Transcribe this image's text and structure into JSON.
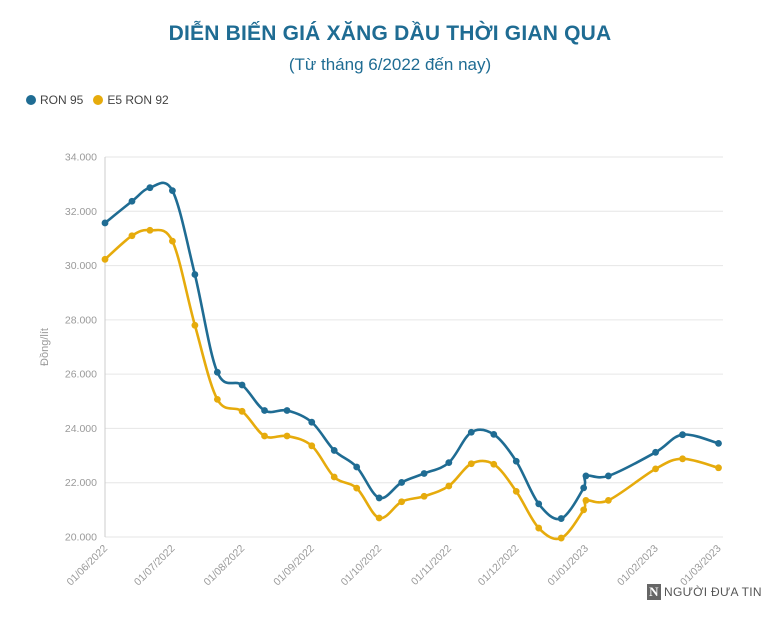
{
  "chart_data": {
    "type": "line",
    "title": "DIỄN BIẾN GIÁ XĂNG DẦU THỜI GIAN QUA",
    "subtitle": "(Từ tháng 6/2022 đến nay)",
    "ylabel": "Đồng/lít",
    "xlabel": "",
    "ylim": [
      20000,
      34000
    ],
    "y_ticks": [
      20000,
      22000,
      24000,
      26000,
      28000,
      30000,
      32000,
      34000
    ],
    "y_tick_labels": [
      "20.000",
      "22.000",
      "24.000",
      "26.000",
      "28.000",
      "30.000",
      "32.000",
      "34.000"
    ],
    "x_range_days": [
      0,
      275
    ],
    "x_ticks": [
      {
        "label": "01/06/2022",
        "day": 0
      },
      {
        "label": "01/07/2022",
        "day": 30
      },
      {
        "label": "01/08/2022",
        "day": 61
      },
      {
        "label": "01/09/2022",
        "day": 92
      },
      {
        "label": "01/10/2022",
        "day": 122
      },
      {
        "label": "01/11/2022",
        "day": 153
      },
      {
        "label": "01/12/2022",
        "day": 183
      },
      {
        "label": "01/01/2023",
        "day": 214
      },
      {
        "label": "01/02/2023",
        "day": 245
      },
      {
        "label": "01/03/2023",
        "day": 273
      }
    ],
    "x_day_offsets": [
      0,
      12,
      20,
      30,
      40,
      50,
      61,
      71,
      81,
      92,
      102,
      112,
      122,
      132,
      142,
      153,
      163,
      173,
      183,
      193,
      203,
      213,
      214,
      224,
      245,
      257,
      273
    ],
    "series": [
      {
        "name": "RON 95",
        "color": "#1f6c93",
        "values": [
          31570,
          32370,
          32870,
          32760,
          29670,
          26070,
          25600,
          24660,
          24660,
          24230,
          23190,
          22580,
          21440,
          22010,
          22340,
          22740,
          23860,
          23780,
          22790,
          21220,
          20680,
          21810,
          22250,
          22250,
          23120,
          23770,
          23450
        ]
      },
      {
        "name": "E5 RON 92",
        "color": "#e6ab0c",
        "values": [
          30230,
          31100,
          31300,
          30900,
          27800,
          25070,
          24630,
          23720,
          23720,
          23360,
          22210,
          21800,
          20700,
          21300,
          21500,
          21880,
          22700,
          22680,
          21680,
          20330,
          19960,
          21000,
          21350,
          21350,
          22510,
          22880,
          22550
        ]
      }
    ]
  },
  "watermark": {
    "logo_letter": "N",
    "text": "NGƯỜI ĐƯA TIN"
  }
}
